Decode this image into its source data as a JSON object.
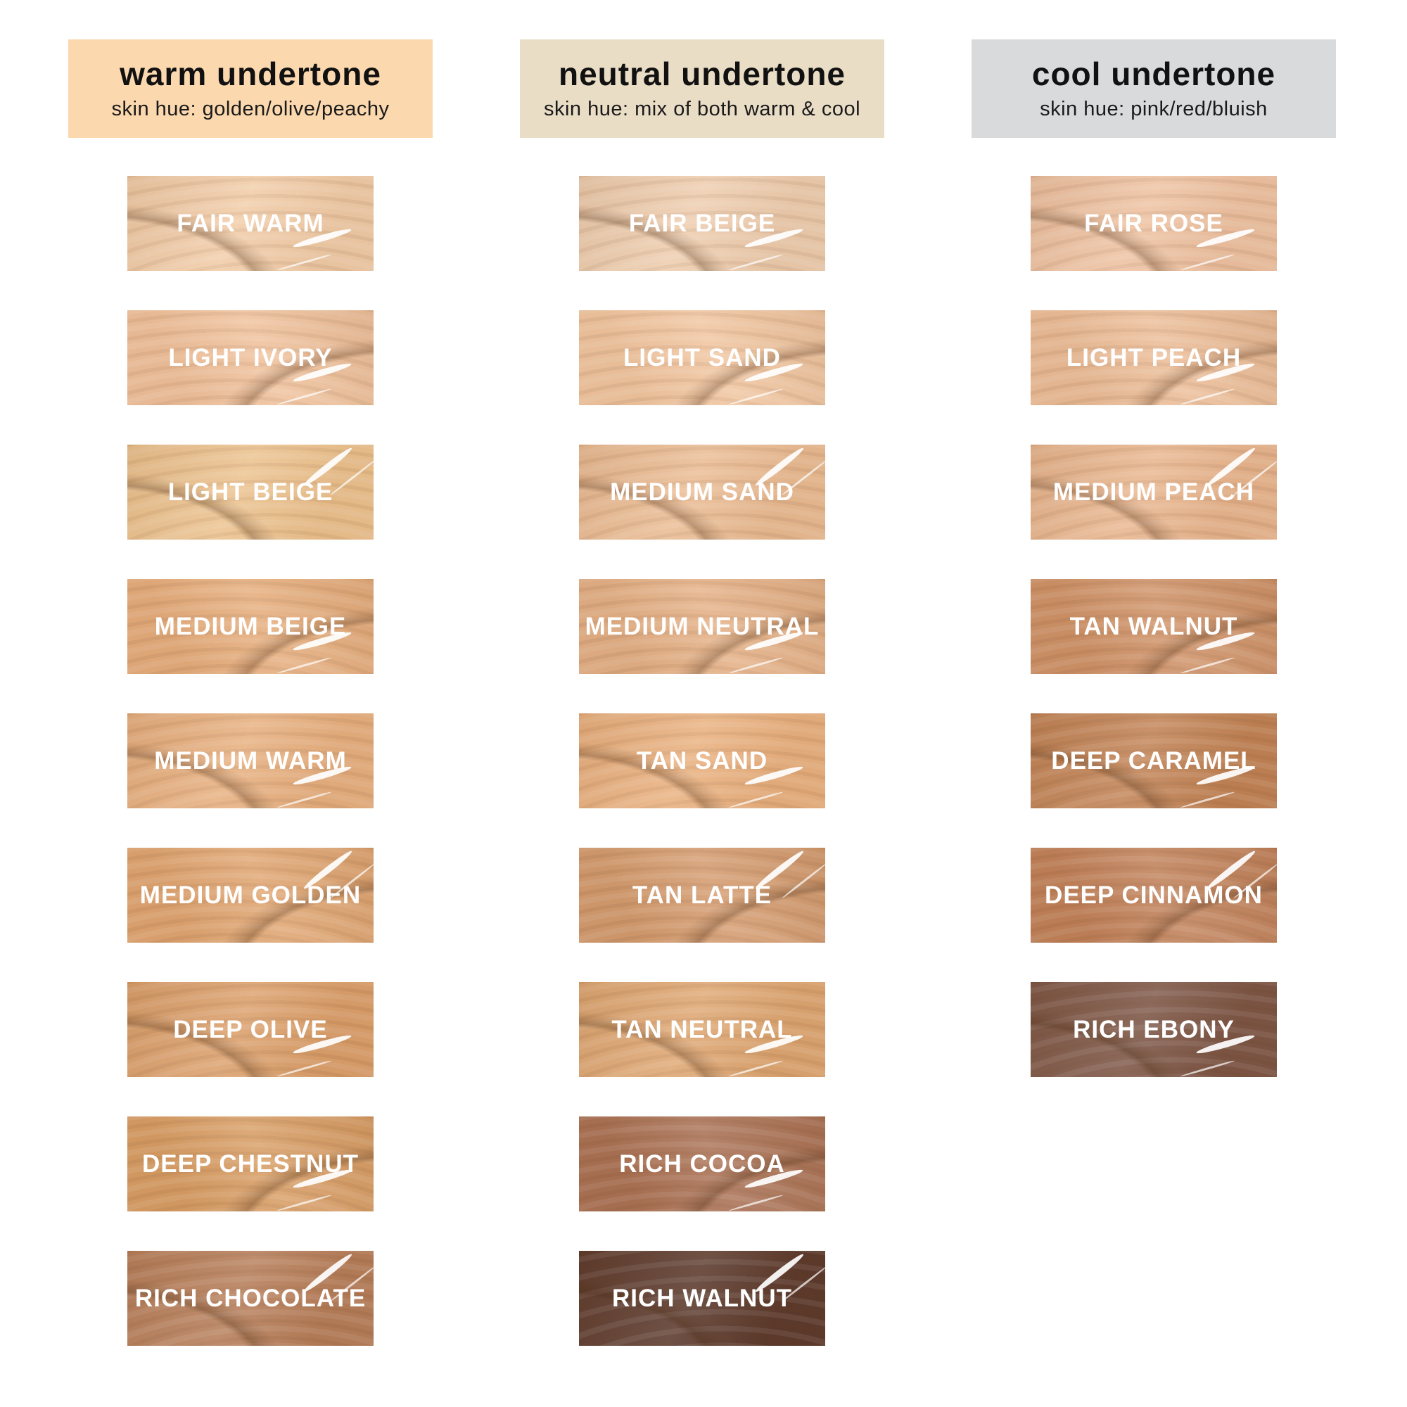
{
  "page": {
    "background": "#FFFFFF"
  },
  "columns": [
    {
      "id": "warm",
      "title": "warm undertone",
      "subtitle": "skin hue: golden/olive/peachy",
      "header_bg": "#FBD8AE",
      "shades": [
        {
          "name": "FAIR WARM",
          "color": "#F1CCA8"
        },
        {
          "name": "LIGHT IVORY",
          "color": "#F0C29D"
        },
        {
          "name": "LIGHT BEIGE",
          "color": "#ECC28F"
        },
        {
          "name": "MEDIUM BEIGE",
          "color": "#E6AE7E"
        },
        {
          "name": "MEDIUM WARM",
          "color": "#E7B080"
        },
        {
          "name": "MEDIUM GOLDEN",
          "color": "#E0A673"
        },
        {
          "name": "DEEP OLIVE",
          "color": "#DBA06C"
        },
        {
          "name": "DEEP CHESTNUT",
          "color": "#D89E66"
        },
        {
          "name": "RICH CHOCOLATE",
          "color": "#B67E5A"
        }
      ]
    },
    {
      "id": "neutral",
      "title": "neutral undertone",
      "subtitle": "skin hue: mix of both warm & cool",
      "header_bg": "#EADDC6",
      "shades": [
        {
          "name": "FAIR BEIGE",
          "color": "#EECDAF"
        },
        {
          "name": "LIGHT SAND",
          "color": "#F1C6A1"
        },
        {
          "name": "MEDIUM SAND",
          "color": "#EABC94"
        },
        {
          "name": "MEDIUM NEUTRAL",
          "color": "#E4B187"
        },
        {
          "name": "TAN SAND",
          "color": "#E9B180"
        },
        {
          "name": "TAN LATTE",
          "color": "#D49C70"
        },
        {
          "name": "TAN NEUTRAL",
          "color": "#DEA773"
        },
        {
          "name": "RICH COCOA",
          "color": "#AA7255"
        },
        {
          "name": "RICH WALNUT",
          "color": "#5B392C"
        }
      ]
    },
    {
      "id": "cool",
      "title": "cool undertone",
      "subtitle": "skin hue: pink/red/bluish",
      "header_bg": "#D9DADC",
      "shades": [
        {
          "name": "FAIR ROSE",
          "color": "#EEC2A2"
        },
        {
          "name": "LIGHT PEACH",
          "color": "#ECBE99"
        },
        {
          "name": "MEDIUM PEACH",
          "color": "#E8B68F"
        },
        {
          "name": "TAN WALNUT",
          "color": "#CF9369"
        },
        {
          "name": "DEEP CARAMEL",
          "color": "#C18356"
        },
        {
          "name": "DEEP CINNAMON",
          "color": "#C1825B"
        },
        {
          "name": "RICH EBONY",
          "color": "#7C5545"
        }
      ]
    }
  ]
}
